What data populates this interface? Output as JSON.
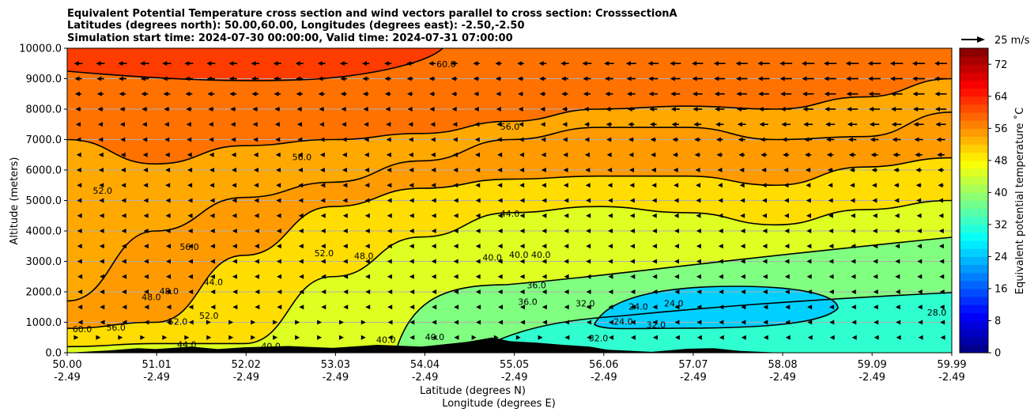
{
  "chart_data": {
    "type": "heatmap",
    "title_lines": [
      "Equivalent Potential Temperature cross section and wind vectors parallel to cross section: CrosssectionA",
      "Latitudes (degrees north): 50.00,60.00, Longitudes (degrees east): -2.50,-2.50",
      "Simulation start time: 2024-07-30 00:00:00, Valid time: 2024-07-31 07:00:00"
    ],
    "ylabel": "Altitude (meters)",
    "xlabel_lines": [
      "Latitude (degrees N)",
      "Longitude (degrees E)"
    ],
    "ylim": [
      0,
      10000
    ],
    "yticks": [
      "0.0",
      "1000.0",
      "2000.0",
      "3000.0",
      "4000.0",
      "5000.0",
      "6000.0",
      "7000.0",
      "8000.0",
      "9000.0",
      "10000.0"
    ],
    "xlim": [
      50.0,
      59.99
    ],
    "xticks": [
      {
        "lat": "50.00",
        "lon": "-2.49"
      },
      {
        "lat": "51.01",
        "lon": "-2.49"
      },
      {
        "lat": "52.02",
        "lon": "-2.49"
      },
      {
        "lat": "53.03",
        "lon": "-2.49"
      },
      {
        "lat": "54.04",
        "lon": "-2.49"
      },
      {
        "lat": "55.05",
        "lon": "-2.49"
      },
      {
        "lat": "56.06",
        "lon": "-2.49"
      },
      {
        "lat": "57.07",
        "lon": "-2.49"
      },
      {
        "lat": "58.08",
        "lon": "-2.49"
      },
      {
        "lat": "59.09",
        "lon": "-2.49"
      },
      {
        "lat": "59.99",
        "lon": "-2.49"
      }
    ],
    "colorbar": {
      "label": "Equivalent potential temperature ˚C",
      "min": 0,
      "max": 76,
      "step": 2,
      "ticks": [
        "0",
        "8",
        "16",
        "24",
        "32",
        "40",
        "48",
        "56",
        "64",
        "72"
      ]
    },
    "quiver_key": "25 m/s",
    "field_columns": [
      {
        "lat": 50.0,
        "z_eq_56": 1700,
        "z_eq_52": 7000,
        "z_eq_48": 800,
        "z_eq_44": 200
      },
      {
        "lat": 51.0,
        "z_eq_56": 4000,
        "z_eq_52": 6200,
        "z_eq_48": 1000,
        "z_eq_44": 300
      },
      {
        "lat": 52.0,
        "z_eq_56": 5100,
        "z_eq_52": 6800,
        "z_eq_48": 3200,
        "z_eq_44": 300
      },
      {
        "lat": 53.0,
        "z_eq_56": 5600,
        "z_eq_52": 7000,
        "z_eq_48": 4800,
        "z_eq_44": 2500
      },
      {
        "lat": 54.0,
        "z_eq_56": 6300,
        "z_eq_52": 7200,
        "z_eq_48": 5400,
        "z_eq_44": 3800
      },
      {
        "lat": 55.0,
        "z_eq_56": 7000,
        "z_eq_52": 7600,
        "z_eq_48": 5700,
        "z_eq_44": 4600
      },
      {
        "lat": 56.0,
        "z_eq_56": 7400,
        "z_eq_52": 8000,
        "z_eq_48": 5800,
        "z_eq_44": 4800
      },
      {
        "lat": 57.0,
        "z_eq_56": 7400,
        "z_eq_52": 8100,
        "z_eq_48": 5800,
        "z_eq_44": 4600
      },
      {
        "lat": 58.0,
        "z_eq_56": 7000,
        "z_eq_52": 8000,
        "z_eq_48": 5500,
        "z_eq_44": 4200
      },
      {
        "lat": 59.0,
        "z_eq_56": 7100,
        "z_eq_52": 8400,
        "z_eq_48": 6100,
        "z_eq_44": 4700
      },
      {
        "lat": 59.99,
        "z_eq_56": 7900,
        "z_eq_52": 9000,
        "z_eq_48": 6400,
        "z_eq_44": 5000
      }
    ],
    "contour_labels": [
      {
        "text": "60.0",
        "lat": 54.28,
        "z": 9450
      },
      {
        "text": "56.0",
        "lat": 55.0,
        "z": 7400
      },
      {
        "text": "56.0",
        "lat": 52.65,
        "z": 6400
      },
      {
        "text": "52.0",
        "lat": 50.4,
        "z": 5300
      },
      {
        "text": "44.0",
        "lat": 55.0,
        "z": 4550
      },
      {
        "text": "56.0",
        "lat": 51.38,
        "z": 3450
      },
      {
        "text": "52.0",
        "lat": 52.9,
        "z": 3250
      },
      {
        "text": "48.0",
        "lat": 53.35,
        "z": 3150
      },
      {
        "text": "40.0",
        "lat": 54.8,
        "z": 3100
      },
      {
        "text": "40.0",
        "lat": 55.1,
        "z": 3200
      },
      {
        "text": "40.0",
        "lat": 55.35,
        "z": 3200
      },
      {
        "text": "44.0",
        "lat": 51.65,
        "z": 2300
      },
      {
        "text": "48.0",
        "lat": 51.15,
        "z": 2000
      },
      {
        "text": "48.0",
        "lat": 50.95,
        "z": 1800
      },
      {
        "text": "36.0",
        "lat": 55.3,
        "z": 2200
      },
      {
        "text": "36.0",
        "lat": 55.2,
        "z": 1650
      },
      {
        "text": "32.0",
        "lat": 55.85,
        "z": 1600
      },
      {
        "text": "24.0",
        "lat": 56.85,
        "z": 1600
      },
      {
        "text": "52.0",
        "lat": 51.25,
        "z": 1000
      },
      {
        "text": "52.0",
        "lat": 51.6,
        "z": 1200
      },
      {
        "text": "24.0",
        "lat": 56.28,
        "z": 1000
      },
      {
        "text": "24.0",
        "lat": 56.45,
        "z": 1500
      },
      {
        "text": "32.0",
        "lat": 56.65,
        "z": 900
      },
      {
        "text": "28.0",
        "lat": 59.82,
        "z": 1300
      },
      {
        "text": "60.0",
        "lat": 50.17,
        "z": 750
      },
      {
        "text": "56.0",
        "lat": 50.55,
        "z": 800
      },
      {
        "text": "44.0",
        "lat": 51.35,
        "z": 250
      },
      {
        "text": "40.0",
        "lat": 52.3,
        "z": 200
      },
      {
        "text": "40.0",
        "lat": 53.6,
        "z": 400
      },
      {
        "text": "40.0",
        "lat": 54.15,
        "z": 500
      },
      {
        "text": "32.0",
        "lat": 56.0,
        "z": 450
      }
    ],
    "wind_arrows": [
      {
        "z": 9500,
        "u": [
          -12,
          -13,
          -12,
          -11,
          -10,
          -9,
          -14,
          -16,
          -18,
          -19,
          -18
        ]
      },
      {
        "z": 9000,
        "u": [
          -10,
          -12,
          -11,
          -10,
          -9,
          -8,
          -12,
          -15,
          -17,
          -18,
          -18
        ]
      },
      {
        "z": 8500,
        "u": [
          -9,
          -10,
          -10,
          -9,
          -8,
          -7,
          -11,
          -14,
          -16,
          -17,
          -17
        ]
      },
      {
        "z": 8000,
        "u": [
          -8,
          -8,
          -8,
          -7,
          -7,
          -6,
          -9,
          -13,
          -15,
          -16,
          -16
        ]
      },
      {
        "z": 7500,
        "u": [
          -7,
          -7,
          -7,
          -6,
          -5,
          -5,
          -8,
          -11,
          -13,
          -14,
          -15
        ]
      },
      {
        "z": 7000,
        "u": [
          -6,
          -6,
          -6,
          -5,
          -4,
          -4,
          -7,
          -9,
          -11,
          -12,
          -13
        ]
      },
      {
        "z": 6500,
        "u": [
          -5,
          -5,
          -5,
          -4,
          -4,
          -3,
          -6,
          -8,
          -9,
          -10,
          -11
        ]
      },
      {
        "z": 6000,
        "u": [
          -5,
          -4,
          -4,
          -4,
          -3,
          -3,
          -5,
          -6,
          -7,
          -8,
          -9
        ]
      },
      {
        "z": 5500,
        "u": [
          -4,
          -4,
          -4,
          -3,
          -3,
          -3,
          -4,
          -5,
          -6,
          -7,
          -8
        ]
      },
      {
        "z": 5000,
        "u": [
          -4,
          -3,
          -3,
          -3,
          -2,
          -2,
          -3,
          -4,
          -5,
          -6,
          -7
        ]
      },
      {
        "z": 4500,
        "u": [
          -3,
          -3,
          -3,
          -2,
          -2,
          -2,
          -3,
          -4,
          -5,
          -5,
          -6
        ]
      },
      {
        "z": 4000,
        "u": [
          -3,
          -3,
          -2,
          -2,
          -2,
          -2,
          -3,
          -3,
          -4,
          -5,
          -5
        ]
      },
      {
        "z": 3500,
        "u": [
          -3,
          -2,
          -2,
          -2,
          -2,
          -2,
          -3,
          -3,
          -4,
          -4,
          -5
        ]
      },
      {
        "z": 3000,
        "u": [
          -3,
          -2,
          -2,
          -2,
          -2,
          -2,
          -3,
          -3,
          -4,
          -4,
          -4
        ]
      },
      {
        "z": 2500,
        "u": [
          -2,
          -2,
          -2,
          -1,
          -2,
          -2,
          -2,
          -3,
          -3,
          -4,
          -4
        ]
      },
      {
        "z": 2000,
        "u": [
          -2,
          -2,
          -1,
          -1,
          -1,
          -2,
          -2,
          -2,
          -3,
          -3,
          -3
        ]
      },
      {
        "z": 1500,
        "u": [
          -2,
          -1,
          -1,
          -1,
          -1,
          -1,
          -2,
          -2,
          -2,
          -3,
          -3
        ]
      },
      {
        "z": 1000,
        "u": [
          -1,
          -1,
          1,
          1,
          -1,
          -1,
          -1,
          -2,
          -2,
          -2,
          -2
        ]
      },
      {
        "z": 500,
        "u": [
          1,
          1,
          1,
          1,
          -1,
          1,
          -1,
          -1,
          -1,
          -1,
          -1
        ]
      }
    ],
    "terrain": [
      {
        "lat": 50.5,
        "z": 80
      },
      {
        "lat": 50.8,
        "z": 150
      },
      {
        "lat": 51.0,
        "z": 120
      },
      {
        "lat": 51.4,
        "z": 200
      },
      {
        "lat": 51.7,
        "z": 120
      },
      {
        "lat": 52.0,
        "z": 180
      },
      {
        "lat": 52.5,
        "z": 220
      },
      {
        "lat": 53.0,
        "z": 160
      },
      {
        "lat": 53.5,
        "z": 260
      },
      {
        "lat": 54.0,
        "z": 200
      },
      {
        "lat": 54.5,
        "z": 350
      },
      {
        "lat": 54.8,
        "z": 500
      },
      {
        "lat": 55.0,
        "z": 380
      },
      {
        "lat": 55.3,
        "z": 330
      },
      {
        "lat": 55.6,
        "z": 260
      },
      {
        "lat": 55.9,
        "z": 200
      },
      {
        "lat": 56.1,
        "z": 100
      },
      {
        "lat": 56.6,
        "z": 30
      },
      {
        "lat": 57.0,
        "z": 130
      },
      {
        "lat": 57.3,
        "z": 150
      },
      {
        "lat": 57.6,
        "z": 60
      },
      {
        "lat": 58.0,
        "z": 10
      },
      {
        "lat": 59.99,
        "z": 0
      }
    ]
  }
}
